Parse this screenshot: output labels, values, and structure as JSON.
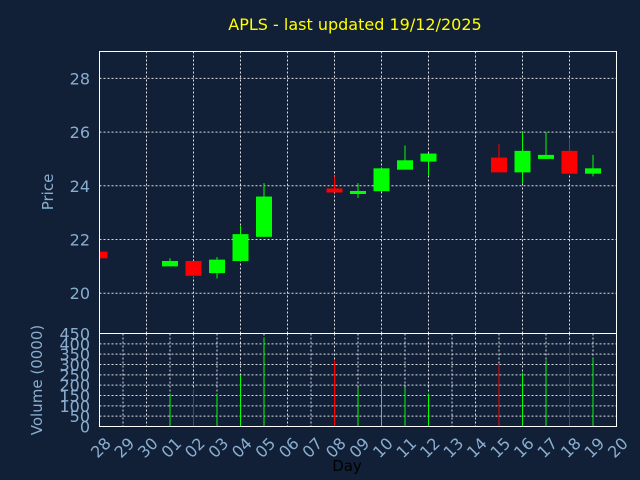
{
  "chart_data": {
    "type": "candlestick",
    "title": "APLS - last updated 19/12/2025",
    "price_panel": {
      "ylabel": "Price",
      "ylim": [
        18.5,
        29
      ],
      "yticks": [
        20,
        22,
        24,
        26,
        28
      ]
    },
    "volume_panel": {
      "ylabel": "Volume (0000)",
      "ylim": [
        0,
        450
      ],
      "yticks": [
        0,
        50,
        100,
        150,
        200,
        250,
        300,
        350,
        400,
        450
      ]
    },
    "xlabel": "Day",
    "x_ticks": [
      "28",
      "29",
      "30",
      "01",
      "02",
      "03",
      "04",
      "05",
      "06",
      "07",
      "08",
      "09",
      "10",
      "11",
      "12",
      "13",
      "14",
      "15",
      "16",
      "17",
      "18",
      "19",
      "20"
    ],
    "grid": true,
    "colors": {
      "up": "#00ff00",
      "down": "#ff0000",
      "background": "#112036",
      "title": "#ffff00",
      "ticks": "#8aaed0"
    },
    "candles": [
      {
        "day": "28",
        "open": 21.55,
        "high": 21.6,
        "low": 21.3,
        "close": 21.3,
        "volume": 0
      },
      {
        "day": "01",
        "open": 21.0,
        "high": 21.3,
        "low": 21.0,
        "close": 21.2,
        "volume": 160
      },
      {
        "day": "02",
        "open": 21.2,
        "high": 21.2,
        "low": 20.6,
        "close": 20.65,
        "volume": 180
      },
      {
        "day": "03",
        "open": 20.75,
        "high": 21.35,
        "low": 20.55,
        "close": 21.25,
        "volume": 160
      },
      {
        "day": "04",
        "open": 21.2,
        "high": 22.5,
        "low": 21.2,
        "close": 22.2,
        "volume": 250
      },
      {
        "day": "05",
        "open": 22.1,
        "high": 24.1,
        "low": 22.1,
        "close": 23.6,
        "volume": 430
      },
      {
        "day": "08",
        "open": 23.9,
        "high": 24.35,
        "low": 23.75,
        "close": 23.75,
        "volume": 320
      },
      {
        "day": "09",
        "open": 23.7,
        "high": 24.1,
        "low": 23.55,
        "close": 23.8,
        "volume": 190
      },
      {
        "day": "10",
        "open": 23.8,
        "high": 24.65,
        "low": 23.8,
        "close": 24.65,
        "volume": 200
      },
      {
        "day": "11",
        "open": 24.6,
        "high": 25.5,
        "low": 24.6,
        "close": 24.95,
        "volume": 190
      },
      {
        "day": "12",
        "open": 24.9,
        "high": 25.2,
        "low": 24.4,
        "close": 25.2,
        "volume": 160
      },
      {
        "day": "15",
        "open": 25.05,
        "high": 25.55,
        "low": 24.5,
        "close": 24.5,
        "volume": 300
      },
      {
        "day": "16",
        "open": 24.5,
        "high": 26.0,
        "low": 24.1,
        "close": 25.3,
        "volume": 260
      },
      {
        "day": "17",
        "open": 25.0,
        "high": 26.0,
        "low": 25.0,
        "close": 25.15,
        "volume": 320
      },
      {
        "day": "18",
        "open": 25.3,
        "high": 25.8,
        "low": 24.45,
        "close": 24.45,
        "volume": 400
      },
      {
        "day": "19",
        "open": 24.45,
        "high": 25.15,
        "low": 24.35,
        "close": 24.65,
        "volume": 330
      }
    ]
  }
}
